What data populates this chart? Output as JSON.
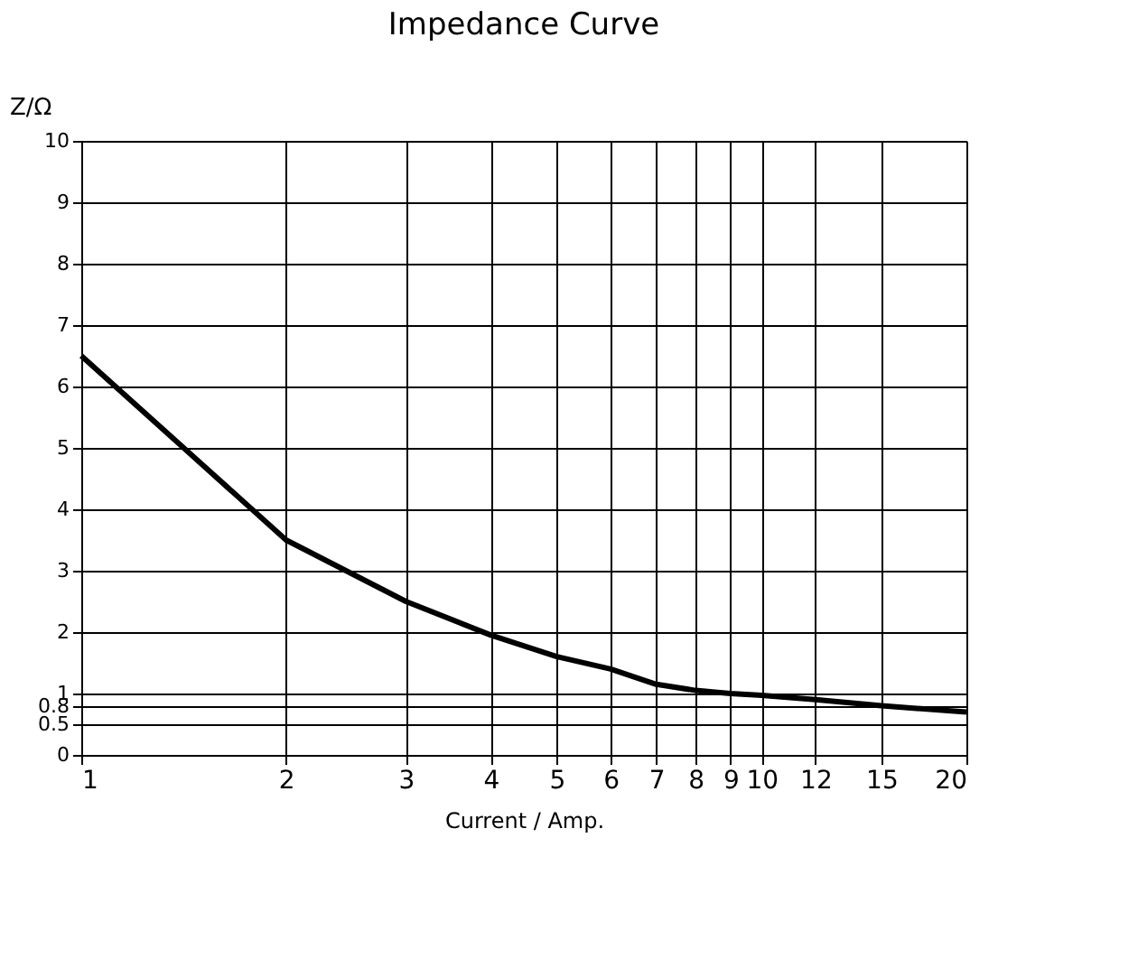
{
  "chart_data": {
    "type": "line",
    "title": "Impedance Curve",
    "xlabel": "Current / Amp.",
    "ylabel": "Z/Ω",
    "x": [
      1,
      2,
      3,
      4,
      5,
      6,
      7,
      8,
      9,
      10,
      12,
      15,
      20
    ],
    "series": [
      {
        "color": "#000000",
        "values": [
          6.5,
          3.5,
          2.5,
          1.95,
          1.6,
          1.4,
          1.15,
          1.05,
          1.0,
          0.97,
          0.9,
          0.8,
          0.7
        ]
      }
    ],
    "log": "x",
    "xlim": [
      1,
      20
    ],
    "xticks": [
      1,
      2,
      3,
      4,
      5,
      6,
      7,
      8,
      9,
      10,
      12,
      15,
      20
    ],
    "ylim": [
      0,
      10
    ],
    "yticks": [
      0,
      0.5,
      0.8,
      1,
      2,
      3,
      4,
      5,
      6,
      7,
      8,
      9,
      10
    ],
    "grid": true,
    "legend": false,
    "marker": "none",
    "line_style": "solid"
  }
}
